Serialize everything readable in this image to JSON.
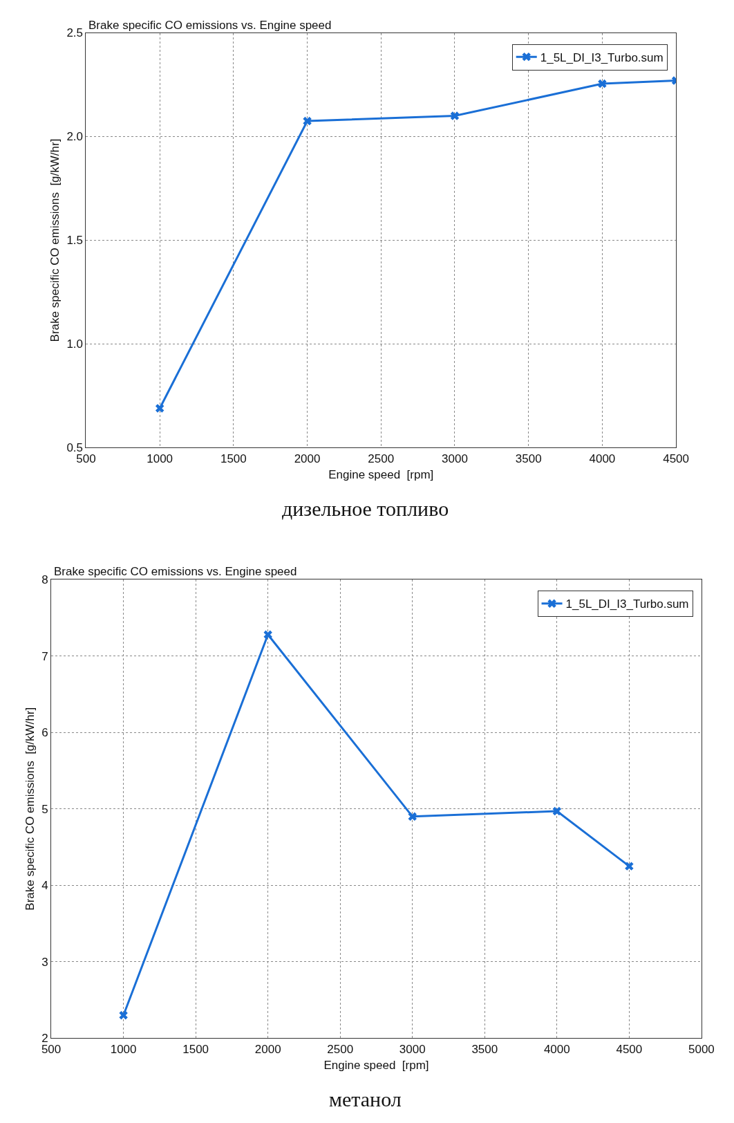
{
  "chart_data": [
    {
      "type": "line",
      "title": "Brake specific CO emissions vs. Engine speed",
      "xlabel": "Engine speed  [rpm]",
      "ylabel": "Brake specific CO emissions  [g/kW/hr]",
      "x": [
        1000,
        2000,
        3000,
        4000,
        4500
      ],
      "series": [
        {
          "name": "1_5L_DI_I3_Turbo.sum",
          "color": "#1a6fd6",
          "values": [
            0.69,
            2.075,
            2.1,
            2.255,
            2.27
          ]
        }
      ],
      "xlim": [
        500,
        4500
      ],
      "ylim": [
        0.5,
        2.5
      ],
      "xticks": [
        500,
        1000,
        1500,
        2000,
        2500,
        3000,
        3500,
        4000,
        4500
      ],
      "yticks": [
        0.5,
        {
          "value": 1,
          "label": "1.0"
        },
        1.5,
        {
          "value": 2,
          "label": "2.0"
        },
        2.5
      ],
      "grid": true,
      "legend": "top right",
      "marker": "cross",
      "line_style": "solid",
      "annotations": [
        "дизельное топливо"
      ]
    },
    {
      "type": "line",
      "title": "Brake specific CO emissions vs. Engine speed",
      "xlabel": "Engine speed  [rpm]",
      "ylabel": "Brake specific CO emissions  [g/kW/hr]",
      "x": [
        1000,
        2000,
        3000,
        4000,
        4500
      ],
      "series": [
        {
          "name": "1_5L_DI_I3_Turbo.sum",
          "color": "#1a6fd6",
          "values": [
            2.3,
            7.28,
            4.9,
            4.97,
            4.25
          ]
        }
      ],
      "xlim": [
        500,
        5000
      ],
      "ylim": [
        2,
        8
      ],
      "xticks": [
        500,
        1000,
        1500,
        2000,
        2500,
        3000,
        3500,
        4000,
        4500,
        5000
      ],
      "yticks": [
        2,
        3,
        4,
        5,
        6,
        7,
        8
      ],
      "grid": true,
      "legend": "top right",
      "marker": "cross",
      "line_style": "solid",
      "annotations": [
        "метанол"
      ]
    }
  ]
}
